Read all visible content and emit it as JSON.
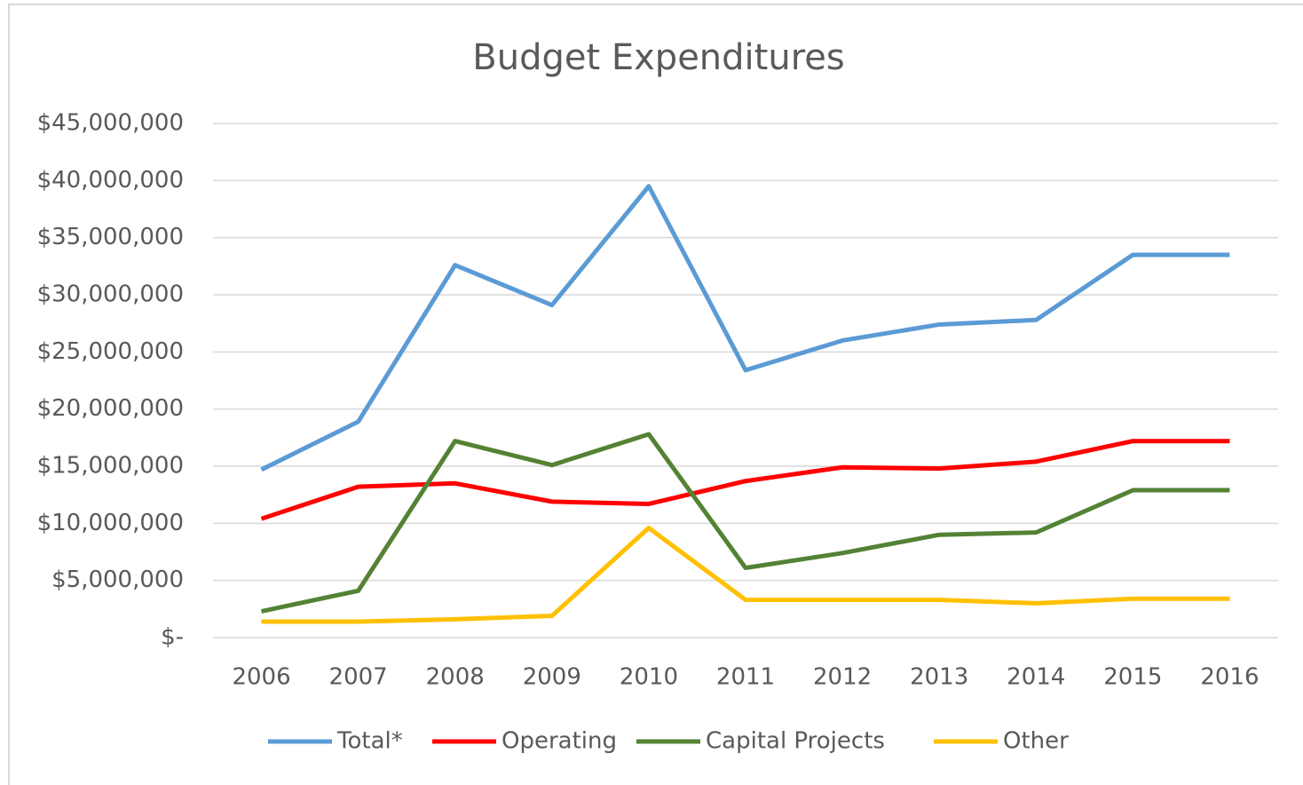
{
  "chart_data": {
    "type": "line",
    "title": "Budget Expenditures",
    "categories": [
      "2006",
      "2007",
      "2008",
      "2009",
      "2010",
      "2011",
      "2012",
      "2013",
      "2014",
      "2015",
      "2016"
    ],
    "series": [
      {
        "name": "Total*",
        "color": "#5b9bd5",
        "values": [
          14700000,
          18900000,
          32600000,
          29100000,
          39500000,
          23400000,
          26000000,
          27400000,
          27800000,
          33500000,
          33500000
        ]
      },
      {
        "name": "Operating",
        "color": "#ff0000",
        "values": [
          10400000,
          13200000,
          13500000,
          11900000,
          11700000,
          13700000,
          14900000,
          14800000,
          15400000,
          17200000,
          17200000
        ]
      },
      {
        "name": "Capital Projects",
        "color": "#548235",
        "values": [
          2300000,
          4100000,
          17200000,
          15100000,
          17800000,
          6100000,
          7400000,
          9000000,
          9200000,
          12900000,
          12900000
        ]
      },
      {
        "name": "Other",
        "color": "#ffc000",
        "values": [
          1400000,
          1400000,
          1600000,
          1900000,
          9600000,
          3300000,
          3300000,
          3300000,
          3000000,
          3400000,
          3400000
        ]
      }
    ],
    "ylim": [
      0,
      45000000
    ],
    "yticks": [
      {
        "value": 0,
        "label": "$-"
      },
      {
        "value": 5000000,
        "label": "$5,000,000"
      },
      {
        "value": 10000000,
        "label": "$10,000,000"
      },
      {
        "value": 15000000,
        "label": "$15,000,000"
      },
      {
        "value": 20000000,
        "label": "$20,000,000"
      },
      {
        "value": 25000000,
        "label": "$25,000,000"
      },
      {
        "value": 30000000,
        "label": "$30,000,000"
      },
      {
        "value": 35000000,
        "label": "$35,000,000"
      },
      {
        "value": 40000000,
        "label": "$40,000,000"
      },
      {
        "value": 45000000,
        "label": "$45,000,000"
      }
    ],
    "grid": true,
    "legend": "bottom"
  }
}
